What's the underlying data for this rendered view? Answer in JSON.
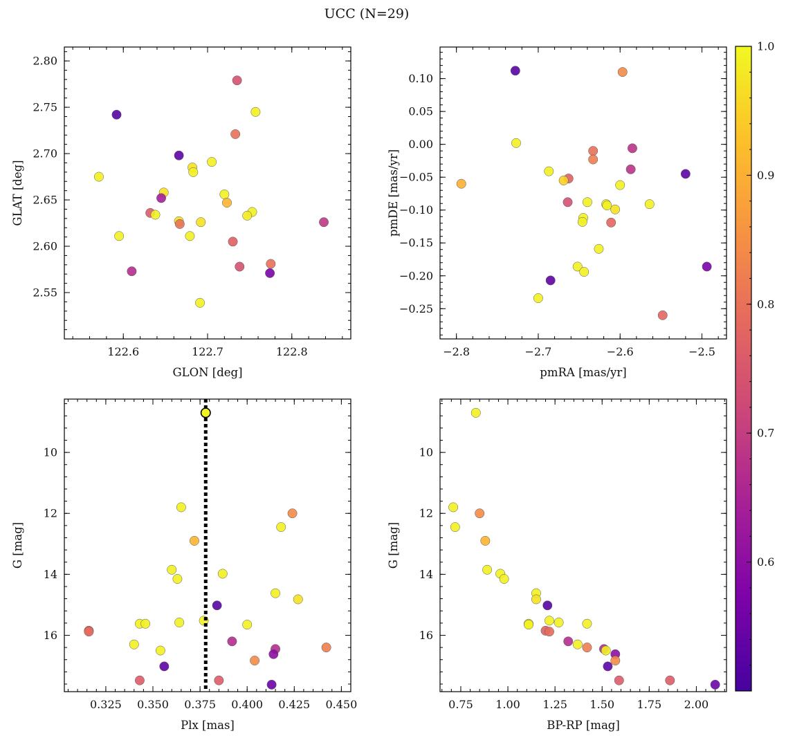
{
  "figure": {
    "title": "UCC (N=29)"
  },
  "colors": {
    "colormap": "plasma",
    "marker_edge": "#555555",
    "vline": "#000000"
  },
  "colorbar": {
    "min": 0.5,
    "max": 1.0,
    "ticks": [
      0.6,
      0.7,
      0.8,
      0.9,
      1.0
    ],
    "tick_labels": [
      "0.6",
      "0.7",
      "0.8",
      "0.9",
      "1.0"
    ]
  },
  "chart_data": [
    {
      "type": "scatter",
      "id": "glon-glat",
      "title": "",
      "xlabel": "GLON [deg]",
      "ylabel": "GLAT [deg]",
      "xlim": [
        122.53,
        122.87
      ],
      "ylim": [
        2.5,
        2.815
      ],
      "xticks": [
        122.6,
        122.7,
        122.8
      ],
      "xtick_labels": [
        "122.6",
        "122.7",
        "122.8"
      ],
      "yticks": [
        2.55,
        2.6,
        2.65,
        2.7,
        2.75,
        2.8
      ],
      "ytick_labels": [
        "2.55",
        "2.60",
        "2.65",
        "2.70",
        "2.75",
        "2.80"
      ],
      "grid": false,
      "points": [
        {
          "x": 122.592,
          "y": 2.742,
          "c": 0.52
        },
        {
          "x": 122.735,
          "y": 2.779,
          "c": 0.74
        },
        {
          "x": 122.757,
          "y": 2.745,
          "c": 0.99
        },
        {
          "x": 122.733,
          "y": 2.721,
          "c": 0.8
        },
        {
          "x": 122.666,
          "y": 2.698,
          "c": 0.53
        },
        {
          "x": 122.705,
          "y": 2.691,
          "c": 0.99
        },
        {
          "x": 122.682,
          "y": 2.685,
          "c": 0.97
        },
        {
          "x": 122.683,
          "y": 2.68,
          "c": 0.99
        },
        {
          "x": 122.571,
          "y": 2.675,
          "c": 0.99
        },
        {
          "x": 122.648,
          "y": 2.658,
          "c": 0.97
        },
        {
          "x": 122.645,
          "y": 2.652,
          "c": 0.64
        },
        {
          "x": 122.72,
          "y": 2.656,
          "c": 0.99
        },
        {
          "x": 122.723,
          "y": 2.647,
          "c": 0.91
        },
        {
          "x": 122.753,
          "y": 2.637,
          "c": 0.99
        },
        {
          "x": 122.747,
          "y": 2.633,
          "c": 0.98
        },
        {
          "x": 122.632,
          "y": 2.636,
          "c": 0.76
        },
        {
          "x": 122.638,
          "y": 2.634,
          "c": 0.99
        },
        {
          "x": 122.666,
          "y": 2.627,
          "c": 0.97
        },
        {
          "x": 122.667,
          "y": 2.624,
          "c": 0.8
        },
        {
          "x": 122.692,
          "y": 2.626,
          "c": 0.97
        },
        {
          "x": 122.838,
          "y": 2.626,
          "c": 0.69
        },
        {
          "x": 122.595,
          "y": 2.611,
          "c": 0.99
        },
        {
          "x": 122.679,
          "y": 2.611,
          "c": 0.99
        },
        {
          "x": 122.73,
          "y": 2.605,
          "c": 0.77
        },
        {
          "x": 122.775,
          "y": 2.581,
          "c": 0.8
        },
        {
          "x": 122.738,
          "y": 2.578,
          "c": 0.74
        },
        {
          "x": 122.61,
          "y": 2.573,
          "c": 0.67
        },
        {
          "x": 122.774,
          "y": 2.571,
          "c": 0.57
        },
        {
          "x": 122.691,
          "y": 2.539,
          "c": 0.99
        }
      ]
    },
    {
      "type": "scatter",
      "id": "pmra-pmde",
      "title": "",
      "xlabel": "pmRA [mas/yr]",
      "ylabel": "pmDE [mas/yr]",
      "xlim": [
        -2.82,
        -2.47
      ],
      "ylim": [
        -0.296,
        0.148
      ],
      "xticks": [
        -2.8,
        -2.7,
        -2.6,
        -2.5
      ],
      "xtick_labels": [
        "−2.8",
        "−2.7",
        "−2.6",
        "−2.5"
      ],
      "yticks": [
        -0.25,
        -0.2,
        -0.15,
        -0.1,
        -0.05,
        0.0,
        0.05,
        0.1
      ],
      "ytick_labels": [
        "−0.25",
        "−0.20",
        "−0.15",
        "−0.10",
        "−0.05",
        "0.00",
        "0.05",
        "0.10"
      ],
      "grid": false,
      "points": [
        {
          "x": -2.728,
          "y": 0.112,
          "c": 0.52
        },
        {
          "x": -2.597,
          "y": 0.11,
          "c": 0.84
        },
        {
          "x": -2.727,
          "y": 0.002,
          "c": 0.99
        },
        {
          "x": -2.633,
          "y": -0.01,
          "c": 0.8
        },
        {
          "x": -2.585,
          "y": -0.006,
          "c": 0.68
        },
        {
          "x": -2.633,
          "y": -0.023,
          "c": 0.82
        },
        {
          "x": -2.587,
          "y": -0.038,
          "c": 0.68
        },
        {
          "x": -2.687,
          "y": -0.041,
          "c": 0.99
        },
        {
          "x": -2.52,
          "y": -0.045,
          "c": 0.53
        },
        {
          "x": -2.663,
          "y": -0.052,
          "c": 0.77
        },
        {
          "x": -2.669,
          "y": -0.055,
          "c": 0.95
        },
        {
          "x": -2.794,
          "y": -0.06,
          "c": 0.9
        },
        {
          "x": -2.6,
          "y": -0.062,
          "c": 0.99
        },
        {
          "x": -2.664,
          "y": -0.088,
          "c": 0.74
        },
        {
          "x": -2.64,
          "y": -0.088,
          "c": 0.99
        },
        {
          "x": -2.617,
          "y": -0.091,
          "c": 0.99
        },
        {
          "x": -2.564,
          "y": -0.091,
          "c": 0.99
        },
        {
          "x": -2.616,
          "y": -0.093,
          "c": 0.99
        },
        {
          "x": -2.606,
          "y": -0.099,
          "c": 0.97
        },
        {
          "x": -2.645,
          "y": -0.112,
          "c": 0.99
        },
        {
          "x": -2.646,
          "y": -0.118,
          "c": 0.99
        },
        {
          "x": -2.611,
          "y": -0.119,
          "c": 0.78
        },
        {
          "x": -2.626,
          "y": -0.159,
          "c": 0.99
        },
        {
          "x": -2.652,
          "y": -0.186,
          "c": 0.99
        },
        {
          "x": -2.494,
          "y": -0.186,
          "c": 0.57
        },
        {
          "x": -2.644,
          "y": -0.194,
          "c": 0.99
        },
        {
          "x": -2.685,
          "y": -0.207,
          "c": 0.53
        },
        {
          "x": -2.7,
          "y": -0.234,
          "c": 0.99
        },
        {
          "x": -2.548,
          "y": -0.26,
          "c": 0.78
        }
      ]
    },
    {
      "type": "scatter",
      "id": "plx-g",
      "title": "",
      "xlabel": "Plx [mas]",
      "ylabel": "G [mag]",
      "xlim": [
        0.303,
        0.455
      ],
      "ylim": [
        17.85,
        8.25
      ],
      "y_inverted": true,
      "xticks": [
        0.325,
        0.35,
        0.375,
        0.4,
        0.425,
        0.45
      ],
      "xtick_labels": [
        "0.325",
        "0.350",
        "0.375",
        "0.400",
        "0.425",
        "0.450"
      ],
      "yticks": [
        10,
        12,
        14,
        16
      ],
      "ytick_labels": [
        "10",
        "12",
        "14",
        "16"
      ],
      "grid": false,
      "vline": {
        "x": 0.378,
        "style": "dotted"
      },
      "points": [
        {
          "x": 0.378,
          "y": 8.7,
          "c": 0.99,
          "ring": true
        },
        {
          "x": 0.365,
          "y": 11.8,
          "c": 0.99
        },
        {
          "x": 0.424,
          "y": 12.0,
          "c": 0.84
        },
        {
          "x": 0.418,
          "y": 12.45,
          "c": 0.99
        },
        {
          "x": 0.372,
          "y": 12.9,
          "c": 0.91
        },
        {
          "x": 0.36,
          "y": 13.85,
          "c": 0.99
        },
        {
          "x": 0.387,
          "y": 13.98,
          "c": 0.99
        },
        {
          "x": 0.363,
          "y": 14.15,
          "c": 0.99
        },
        {
          "x": 0.415,
          "y": 14.62,
          "c": 0.99
        },
        {
          "x": 0.427,
          "y": 14.82,
          "c": 0.97
        },
        {
          "x": 0.384,
          "y": 15.02,
          "c": 0.52
        },
        {
          "x": 0.377,
          "y": 15.52,
          "c": 0.99
        },
        {
          "x": 0.364,
          "y": 15.58,
          "c": 0.99
        },
        {
          "x": 0.343,
          "y": 15.62,
          "c": 0.99
        },
        {
          "x": 0.346,
          "y": 15.62,
          "c": 0.99
        },
        {
          "x": 0.4,
          "y": 15.65,
          "c": 0.99
        },
        {
          "x": 0.316,
          "y": 15.85,
          "c": 0.77
        },
        {
          "x": 0.316,
          "y": 15.88,
          "c": 0.79
        },
        {
          "x": 0.392,
          "y": 16.2,
          "c": 0.67
        },
        {
          "x": 0.34,
          "y": 16.3,
          "c": 0.99
        },
        {
          "x": 0.442,
          "y": 16.4,
          "c": 0.82
        },
        {
          "x": 0.415,
          "y": 16.45,
          "c": 0.67
        },
        {
          "x": 0.354,
          "y": 16.5,
          "c": 0.99
        },
        {
          "x": 0.414,
          "y": 16.62,
          "c": 0.6
        },
        {
          "x": 0.404,
          "y": 16.83,
          "c": 0.84
        },
        {
          "x": 0.356,
          "y": 17.02,
          "c": 0.53
        },
        {
          "x": 0.343,
          "y": 17.48,
          "c": 0.76
        },
        {
          "x": 0.385,
          "y": 17.48,
          "c": 0.76
        },
        {
          "x": 0.413,
          "y": 17.62,
          "c": 0.55
        }
      ]
    },
    {
      "type": "scatter",
      "id": "bprp-g",
      "title": "",
      "xlabel": "BP-RP [mag]",
      "ylabel": "G [mag]",
      "xlim": [
        0.64,
        2.16
      ],
      "ylim": [
        17.85,
        8.25
      ],
      "y_inverted": true,
      "xticks": [
        0.75,
        1.0,
        1.25,
        1.5,
        1.75,
        2.0
      ],
      "xtick_labels": [
        "0.75",
        "1.00",
        "1.25",
        "1.50",
        "1.75",
        "2.00"
      ],
      "yticks": [
        10,
        12,
        14,
        16
      ],
      "ytick_labels": [
        "10",
        "12",
        "14",
        "16"
      ],
      "grid": false,
      "points": [
        {
          "x": 0.83,
          "y": 8.7,
          "c": 0.99
        },
        {
          "x": 0.71,
          "y": 11.8,
          "c": 0.99
        },
        {
          "x": 0.85,
          "y": 12.0,
          "c": 0.84
        },
        {
          "x": 0.72,
          "y": 12.45,
          "c": 0.99
        },
        {
          "x": 0.88,
          "y": 12.9,
          "c": 0.91
        },
        {
          "x": 0.89,
          "y": 13.85,
          "c": 0.99
        },
        {
          "x": 0.96,
          "y": 13.98,
          "c": 0.99
        },
        {
          "x": 0.98,
          "y": 14.15,
          "c": 0.99
        },
        {
          "x": 1.15,
          "y": 14.62,
          "c": 0.99
        },
        {
          "x": 1.15,
          "y": 14.82,
          "c": 0.97
        },
        {
          "x": 1.21,
          "y": 15.02,
          "c": 0.52
        },
        {
          "x": 1.22,
          "y": 15.52,
          "c": 0.99
        },
        {
          "x": 1.27,
          "y": 15.58,
          "c": 0.99
        },
        {
          "x": 1.11,
          "y": 15.62,
          "c": 0.99
        },
        {
          "x": 1.11,
          "y": 15.65,
          "c": 0.99
        },
        {
          "x": 1.42,
          "y": 15.62,
          "c": 0.99
        },
        {
          "x": 1.2,
          "y": 15.85,
          "c": 0.77
        },
        {
          "x": 1.22,
          "y": 15.88,
          "c": 0.79
        },
        {
          "x": 1.32,
          "y": 16.2,
          "c": 0.67
        },
        {
          "x": 1.37,
          "y": 16.3,
          "c": 0.99
        },
        {
          "x": 1.42,
          "y": 16.4,
          "c": 0.82
        },
        {
          "x": 1.51,
          "y": 16.45,
          "c": 0.67
        },
        {
          "x": 1.52,
          "y": 16.5,
          "c": 0.99
        },
        {
          "x": 1.57,
          "y": 16.62,
          "c": 0.6
        },
        {
          "x": 1.57,
          "y": 16.83,
          "c": 0.84
        },
        {
          "x": 1.53,
          "y": 17.02,
          "c": 0.53
        },
        {
          "x": 1.59,
          "y": 17.48,
          "c": 0.76
        },
        {
          "x": 1.86,
          "y": 17.48,
          "c": 0.76
        },
        {
          "x": 2.1,
          "y": 17.62,
          "c": 0.55
        }
      ]
    }
  ]
}
